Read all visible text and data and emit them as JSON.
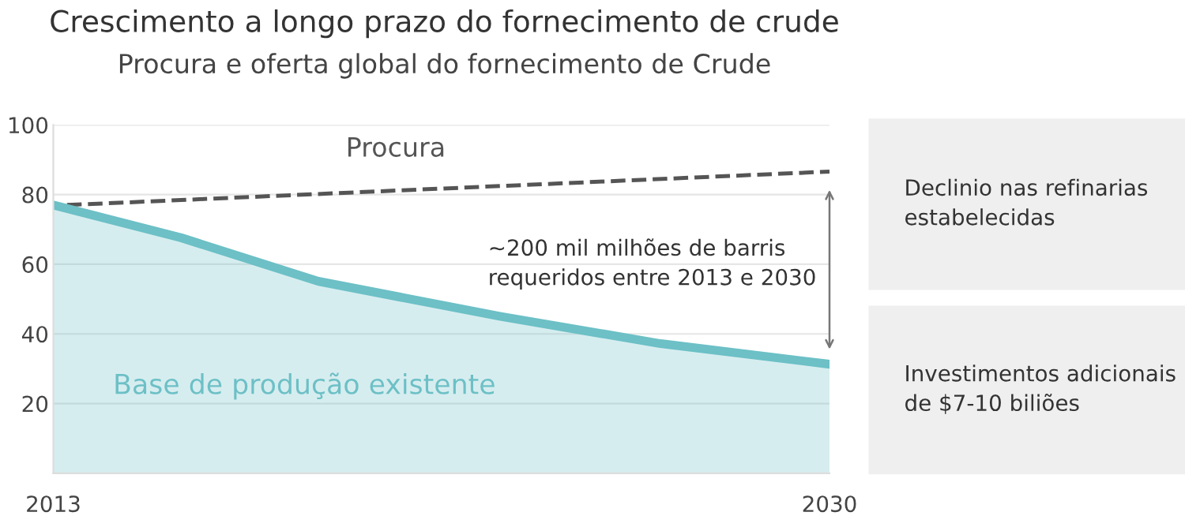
{
  "chart_data": {
    "type": "line",
    "title": "Crescimento a longo prazo do fornecimento de crude",
    "subtitle": "Procura e oferta global do fornecimento de Crude",
    "xlim": [
      2013,
      2030
    ],
    "xticks": [
      2013,
      2030
    ],
    "ylim": [
      0,
      100
    ],
    "yticks": [
      20,
      40,
      60,
      80,
      100
    ],
    "grid": "y",
    "legend": false,
    "series": [
      {
        "name": "Procura",
        "line_style": "dashed",
        "color": "#555555",
        "x": [
          2013.3,
          2030
        ],
        "values": [
          77,
          86.6
        ]
      },
      {
        "name": "Base de produção existente",
        "type": "area",
        "color": "#6cc0c6",
        "x": [
          2013,
          2015.8,
          2018.8,
          2022.8,
          2026.3,
          2030
        ],
        "values": [
          77,
          67.6,
          55.1,
          45,
          37.2,
          31.3
        ]
      }
    ],
    "annotations": [
      "~200 mil milhões de barris\nrequeridos entre 2013 e 2030",
      "Declinio nas refinarias\nestabelecidas",
      "Investimentos adicionais\nde $7-10 biliões"
    ]
  }
}
